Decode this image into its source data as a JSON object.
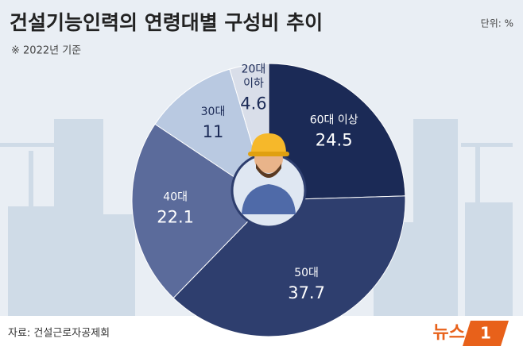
{
  "chart_data": {
    "type": "pie",
    "title": "건설기능인력의 연령대별 구성비 추이",
    "unit": "단위: %",
    "subtitle": "※ 2022년 기준",
    "source": "자료: 건설근로자공제회",
    "logo": {
      "text": "뉴스",
      "mark": "1"
    },
    "categories": [
      "60대 이상",
      "50대",
      "40대",
      "30대",
      "20대 이하"
    ],
    "values": [
      24.5,
      37.7,
      22.1,
      11,
      4.6
    ],
    "colors": [
      "#1b2a56",
      "#2e3e6e",
      "#5b6b9b",
      "#b9c9e1",
      "#d9dee9"
    ],
    "label_colors": [
      "#ffffff",
      "#ffffff",
      "#ffffff",
      "#1b2a56",
      "#1b2a56"
    ]
  }
}
